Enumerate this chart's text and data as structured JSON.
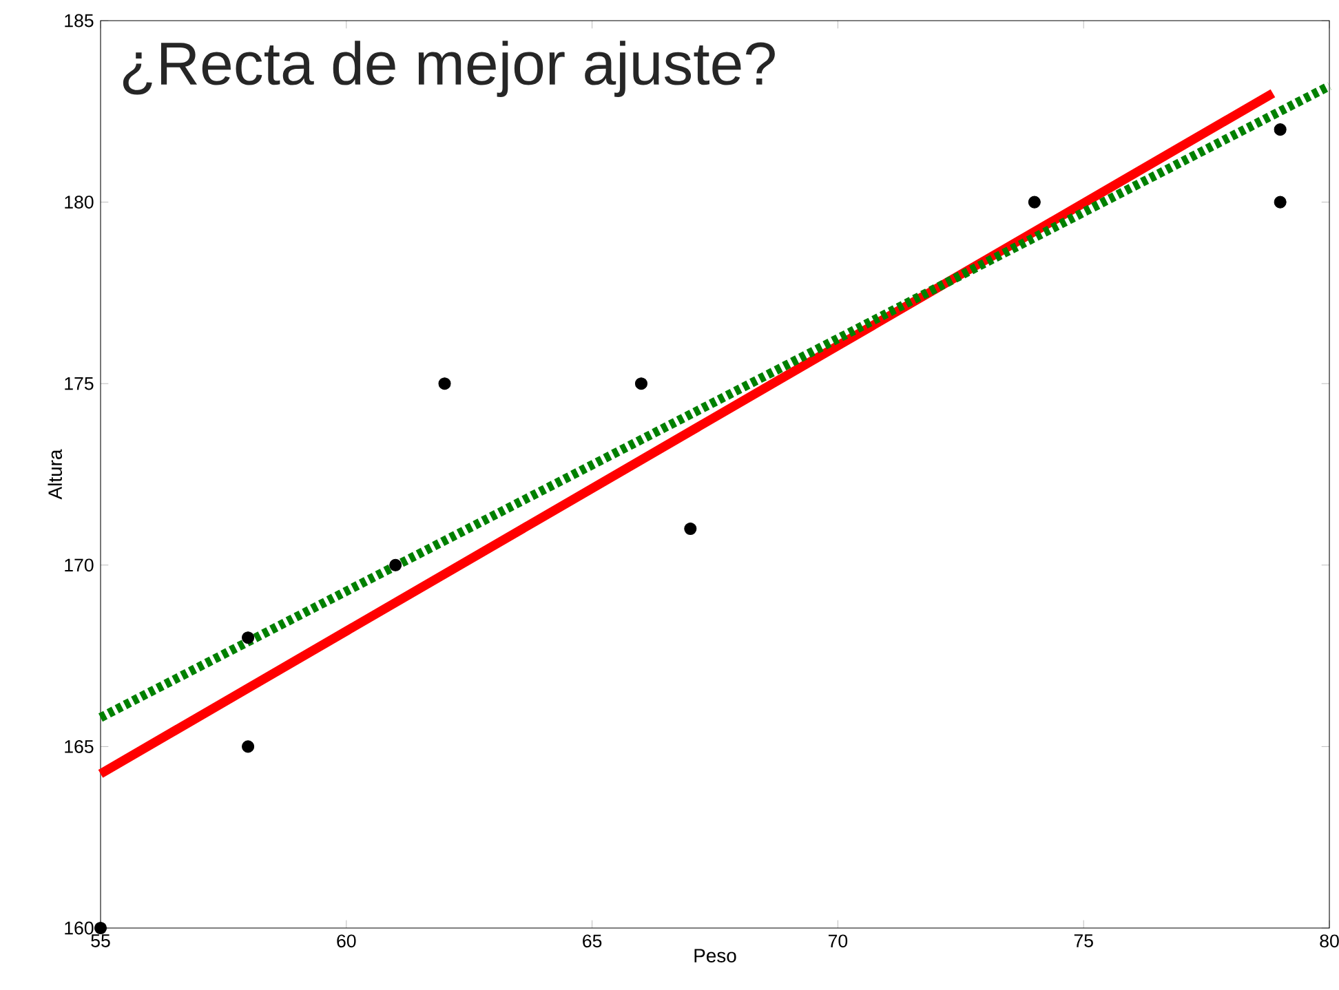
{
  "chart_data": {
    "type": "scatter",
    "title": "¿Recta de mejor ajuste?",
    "xlabel": "Peso",
    "ylabel": "Altura",
    "xlim": [
      55,
      80
    ],
    "ylim": [
      160,
      185
    ],
    "xticks": [
      55,
      60,
      65,
      70,
      75,
      80
    ],
    "yticks": [
      160,
      165,
      170,
      175,
      180,
      185
    ],
    "grid": false,
    "series": [
      {
        "color": "#000000",
        "marker": "circle",
        "x": [
          55,
          58,
          58,
          61,
          62,
          66,
          67,
          74,
          79,
          79
        ],
        "values": [
          160,
          168,
          165,
          170,
          175,
          175,
          171,
          180,
          182,
          180
        ]
      },
      {
        "type": "line",
        "color": "#ff0000",
        "line_style": "solid",
        "marker": "none",
        "x": [
          55,
          78.85
        ],
        "values": [
          164.25,
          183.0
        ]
      },
      {
        "type": "line",
        "color": "#008000",
        "line_style": "dotted",
        "marker": "none",
        "x": [
          55,
          80
        ],
        "values": [
          165.8,
          183.2
        ]
      }
    ]
  }
}
